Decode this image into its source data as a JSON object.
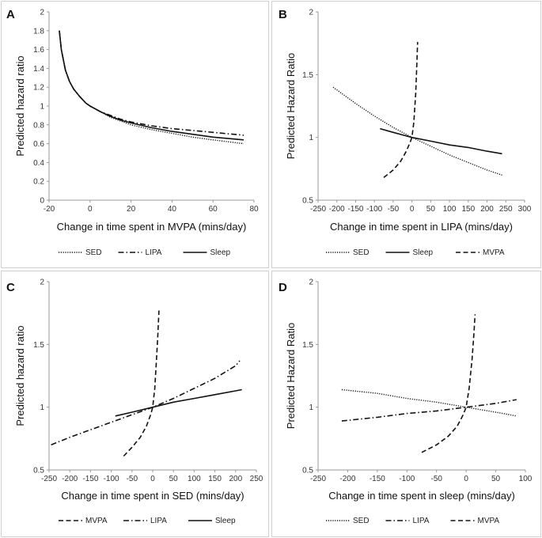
{
  "chart_data": [
    {
      "panel": "A",
      "type": "line",
      "xlabel": "Change in time spent in MVPA (mins/day)",
      "ylabel": "Predicted hazard ratio",
      "xlim": [
        -20,
        80
      ],
      "ylim": [
        0,
        2
      ],
      "xticks": [
        "-20",
        "0",
        "20",
        "40",
        "60",
        "80"
      ],
      "yticks": [
        "0",
        "0.2",
        "0.4",
        "0.6",
        "0.8",
        "1",
        "1.2",
        "1.4",
        "1.6",
        "1.8",
        "2"
      ],
      "series": [
        {
          "name": "SED",
          "style": "dotted",
          "x": [
            -15,
            -14,
            -12,
            -10,
            -8,
            -5,
            -2,
            0,
            5,
            10,
            15,
            20,
            30,
            40,
            50,
            60,
            75
          ],
          "y": [
            1.8,
            1.6,
            1.38,
            1.26,
            1.18,
            1.1,
            1.03,
            1.0,
            0.94,
            0.88,
            0.84,
            0.8,
            0.75,
            0.71,
            0.67,
            0.64,
            0.6
          ]
        },
        {
          "name": "LIPA",
          "style": "dash-dot",
          "x": [
            -15,
            -14,
            -12,
            -10,
            -8,
            -5,
            -2,
            0,
            5,
            10,
            15,
            20,
            30,
            40,
            50,
            60,
            75
          ],
          "y": [
            1.8,
            1.6,
            1.38,
            1.26,
            1.18,
            1.1,
            1.03,
            1.0,
            0.94,
            0.9,
            0.86,
            0.83,
            0.79,
            0.76,
            0.74,
            0.72,
            0.69
          ]
        },
        {
          "name": "Sleep",
          "style": "solid",
          "x": [
            -15,
            -14,
            -12,
            -10,
            -8,
            -5,
            -2,
            0,
            5,
            10,
            15,
            20,
            30,
            40,
            50,
            60,
            75
          ],
          "y": [
            1.8,
            1.6,
            1.38,
            1.26,
            1.18,
            1.1,
            1.03,
            1.0,
            0.94,
            0.89,
            0.85,
            0.82,
            0.77,
            0.73,
            0.7,
            0.67,
            0.64
          ]
        }
      ],
      "legend": [
        "SED",
        "LIPA",
        "Sleep"
      ]
    },
    {
      "panel": "B",
      "type": "line",
      "xlabel": "Change in time spent in LIPA (mins/day)",
      "ylabel": "Predicted Hazard Ratio",
      "xlim": [
        -250,
        300
      ],
      "ylim": [
        0.5,
        2
      ],
      "xticks": [
        "-250",
        "-200",
        "-150",
        "-100",
        "-50",
        "0",
        "50",
        "100",
        "150",
        "200",
        "250",
        "300"
      ],
      "yticks": [
        "0.5",
        "1",
        "1.5",
        "2"
      ],
      "series": [
        {
          "name": "SED",
          "style": "dotted",
          "x": [
            -210,
            -150,
            -100,
            -50,
            0,
            50,
            100,
            150,
            200,
            240
          ],
          "y": [
            1.4,
            1.27,
            1.17,
            1.08,
            1.0,
            0.93,
            0.86,
            0.8,
            0.74,
            0.7
          ]
        },
        {
          "name": "Sleep",
          "style": "solid",
          "x": [
            -85,
            -50,
            0,
            50,
            100,
            150,
            200,
            240
          ],
          "y": [
            1.07,
            1.04,
            1.0,
            0.97,
            0.94,
            0.92,
            0.89,
            0.87
          ]
        },
        {
          "name": "MVPA",
          "style": "dashed",
          "x": [
            -75,
            -50,
            -30,
            -15,
            -5,
            0,
            5,
            10,
            13,
            15
          ],
          "y": [
            0.68,
            0.74,
            0.81,
            0.89,
            0.96,
            1.0,
            1.12,
            1.35,
            1.58,
            1.76
          ]
        }
      ],
      "legend": [
        "SED",
        "Sleep",
        "MVPA"
      ]
    },
    {
      "panel": "C",
      "type": "line",
      "xlabel": "Change in time spent in SED (mins/day)",
      "ylabel": "Predicted hazard ratio",
      "xlim": [
        -250,
        250
      ],
      "ylim": [
        0.5,
        2
      ],
      "xticks": [
        "-250",
        "-200",
        "-150",
        "-100",
        "-50",
        "0",
        "50",
        "100",
        "150",
        "200",
        "250"
      ],
      "yticks": [
        "0.5",
        "1",
        "1.5",
        "2"
      ],
      "series": [
        {
          "name": "MVPA",
          "style": "dashed",
          "x": [
            -70,
            -50,
            -30,
            -15,
            -5,
            0,
            5,
            8,
            12,
            15
          ],
          "y": [
            0.61,
            0.68,
            0.76,
            0.85,
            0.94,
            1.0,
            1.15,
            1.32,
            1.55,
            1.77
          ]
        },
        {
          "name": "LIPA",
          "style": "dash-dot",
          "x": [
            -245,
            -200,
            -150,
            -100,
            -50,
            0,
            50,
            100,
            150,
            200,
            210
          ],
          "y": [
            0.7,
            0.76,
            0.82,
            0.88,
            0.94,
            1.0,
            1.07,
            1.15,
            1.23,
            1.33,
            1.37
          ]
        },
        {
          "name": "Sleep",
          "style": "solid",
          "x": [
            -90,
            -50,
            0,
            50,
            100,
            150,
            200,
            215
          ],
          "y": [
            0.93,
            0.96,
            1.0,
            1.04,
            1.07,
            1.1,
            1.13,
            1.14
          ]
        }
      ],
      "legend": [
        "MVPA",
        "LIPA",
        "Sleep"
      ]
    },
    {
      "panel": "D",
      "type": "line",
      "xlabel": "Change in time spent in sleep (mins/day)",
      "ylabel": "Predicted Hazard Ratio",
      "xlim": [
        -250,
        100
      ],
      "ylim": [
        0.5,
        2
      ],
      "xticks": [
        "-250",
        "-200",
        "-150",
        "-100",
        "-50",
        "0",
        "50",
        "100"
      ],
      "yticks": [
        "0.5",
        "1",
        "1.5",
        "2"
      ],
      "series": [
        {
          "name": "SED",
          "style": "dotted",
          "x": [
            -210,
            -150,
            -100,
            -50,
            0,
            50,
            85
          ],
          "y": [
            1.14,
            1.11,
            1.07,
            1.04,
            1.0,
            0.96,
            0.93
          ]
        },
        {
          "name": "LIPA",
          "style": "dash-dot",
          "x": [
            -210,
            -150,
            -100,
            -50,
            0,
            50,
            85
          ],
          "y": [
            0.89,
            0.92,
            0.95,
            0.97,
            1.0,
            1.03,
            1.06
          ]
        },
        {
          "name": "MVPA",
          "style": "dashed",
          "x": [
            -75,
            -50,
            -30,
            -15,
            -5,
            0,
            5,
            10,
            13,
            15
          ],
          "y": [
            0.64,
            0.7,
            0.77,
            0.85,
            0.94,
            1.0,
            1.15,
            1.38,
            1.58,
            1.74
          ]
        }
      ],
      "legend": [
        "SED",
        "LIPA",
        "MVPA"
      ]
    }
  ]
}
